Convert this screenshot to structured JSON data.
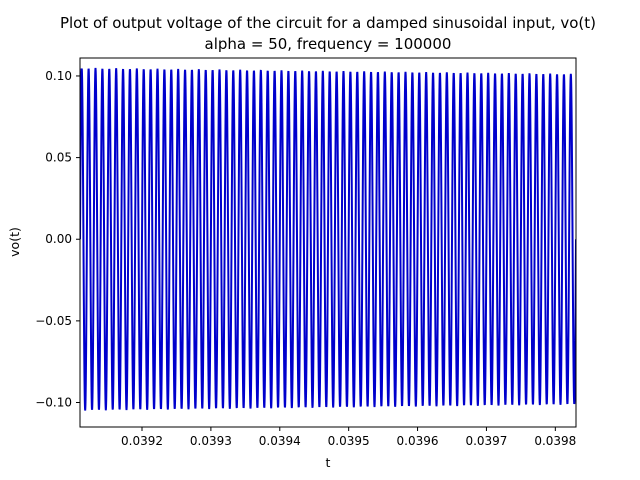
{
  "chart_data": {
    "type": "line",
    "title": "Plot of output voltage of the circuit for a damped sinusoidal input, vo(t)",
    "subtitle": "alpha = 50, frequency = 100000",
    "xlabel": "t",
    "ylabel": "vo(t)",
    "xlim": [
      0.03911,
      0.03983
    ],
    "ylim": [
      -0.115,
      0.111
    ],
    "xticks": [
      0.0392,
      0.0393,
      0.0394,
      0.0395,
      0.0396,
      0.0397,
      0.0398
    ],
    "xtick_labels": [
      "0.0392",
      "0.0393",
      "0.0394",
      "0.0395",
      "0.0396",
      "0.0397",
      "0.0398"
    ],
    "yticks": [
      0.1,
      0.05,
      0.0,
      -0.05,
      -0.1
    ],
    "ytick_labels": [
      "0.10",
      "0.05",
      "0.00",
      "−0.05",
      "−0.10"
    ],
    "series": [
      {
        "name": "vo(t)",
        "color": "#0000cc",
        "function": "A(t) * sin(2*pi*f*t)",
        "frequency": 100000,
        "amplitude_start": 0.1045,
        "amplitude_end": 0.1008,
        "t_start": 0.03911,
        "t_end": 0.03983,
        "phase_end_value": 0.0
      }
    ]
  }
}
